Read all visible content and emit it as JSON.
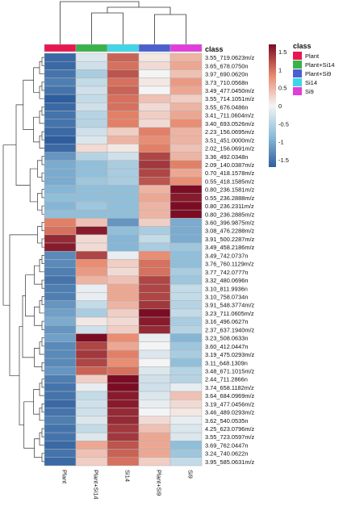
{
  "chart_data": {
    "type": "heatmap",
    "title": "",
    "columns": [
      "Plant",
      "Plant+Si14",
      "Si14",
      "Plant+Si9",
      "Si9"
    ],
    "annotation": {
      "title": "class",
      "classes": [
        {
          "name": "Plant",
          "color": "#e8174f"
        },
        {
          "name": "Plant+Si14",
          "color": "#3ab24a"
        },
        {
          "name": "Plant+Si9",
          "color": "#4a5fd0"
        },
        {
          "name": "Si14",
          "color": "#3fd6e8"
        },
        {
          "name": "Si9",
          "color": "#e23ddb"
        }
      ]
    },
    "colorbar": {
      "range": [
        -1.7,
        1.7
      ],
      "ticks": [
        1.5,
        1,
        0.5,
        0,
        -0.5,
        -1,
        -1.5
      ],
      "colors": [
        "#2f5e9e",
        "#8bbcd8",
        "#f4f4f4",
        "#e8876b",
        "#7a0d24"
      ]
    },
    "rows": [
      {
        "label": "3.55_719.0623m/z",
        "values": [
          -1.6,
          -0.2,
          1.1,
          0.1,
          0.5
        ]
      },
      {
        "label": "3.65_678.0750n",
        "values": [
          -1.6,
          -0.3,
          1.0,
          0.2,
          0.6
        ]
      },
      {
        "label": "3.97_690.0620n",
        "values": [
          -1.5,
          -0.6,
          1.2,
          0.0,
          0.4
        ]
      },
      {
        "label": "3.73_710.0568n",
        "values": [
          -1.4,
          -0.4,
          1.0,
          0.1,
          0.7
        ]
      },
      {
        "label": "3.49_477.0450m/z",
        "values": [
          -1.5,
          -0.3,
          1.1,
          0.0,
          0.6
        ]
      },
      {
        "label": "3.55_714.1051m/z",
        "values": [
          -1.7,
          -0.4,
          1.0,
          0.4,
          0.3
        ]
      },
      {
        "label": "3.55_676.0486n",
        "values": [
          -1.6,
          -0.3,
          1.0,
          0.2,
          0.5
        ]
      },
      {
        "label": "3.41_711.0604m/z",
        "values": [
          -1.5,
          -0.5,
          0.9,
          0.3,
          0.6
        ]
      },
      {
        "label": "3.40_693.0526m/z",
        "values": [
          -1.5,
          -0.5,
          0.9,
          0.2,
          0.8
        ]
      },
      {
        "label": "2.23_156.0695m/z",
        "values": [
          -1.6,
          -0.3,
          0.3,
          0.9,
          0.5
        ]
      },
      {
        "label": "3.51_451.0000m/z",
        "values": [
          -1.7,
          -0.2,
          0.5,
          0.8,
          0.5
        ]
      },
      {
        "label": "2.02_156.0691m/z",
        "values": [
          -1.6,
          0.2,
          0.1,
          0.9,
          0.4
        ]
      },
      {
        "label": "3.36_492.0348n",
        "values": [
          -1.2,
          -0.5,
          -0.3,
          1.3,
          0.5
        ]
      },
      {
        "label": "2.09_140.0387m/z",
        "values": [
          -1.0,
          -0.8,
          -0.6,
          1.4,
          0.9
        ]
      },
      {
        "label": "0.70_418.1578m/z",
        "values": [
          -1.0,
          -0.8,
          -0.6,
          1.3,
          0.6
        ]
      },
      {
        "label": "0.55_418.1585m/z",
        "values": [
          -1.0,
          -0.7,
          -0.6,
          1.2,
          0.8
        ]
      },
      {
        "label": "0.80_236.1581m/z",
        "values": [
          -0.9,
          -0.8,
          -0.8,
          0.5,
          1.7
        ]
      },
      {
        "label": "0.55_236.2888m/z",
        "values": [
          -0.8,
          -0.8,
          -0.8,
          0.6,
          1.6
        ]
      },
      {
        "label": "0.80_236.2311m/z",
        "values": [
          -0.9,
          -0.7,
          -0.8,
          0.5,
          1.7
        ]
      },
      {
        "label": "0.80_236.2885m/z",
        "values": [
          -0.8,
          -0.8,
          -0.8,
          0.5,
          1.7
        ]
      },
      {
        "label": "3.60_396.9875m/z",
        "values": [
          0.9,
          0.4,
          -1.2,
          0.3,
          -1.0
        ]
      },
      {
        "label": "3.08_476.2288m/z",
        "values": [
          1.0,
          1.6,
          -0.8,
          -0.6,
          -1.0
        ]
      },
      {
        "label": "3.91_500.2287m/z",
        "values": [
          1.5,
          0.2,
          -0.9,
          -0.4,
          -1.0
        ]
      },
      {
        "label": "3.49_458.2186m/z",
        "values": [
          1.6,
          0.2,
          -0.9,
          -0.6,
          -0.7
        ]
      },
      {
        "label": "3.49_742.0737n",
        "values": [
          -1.3,
          1.3,
          -0.1,
          0.8,
          -0.8
        ]
      },
      {
        "label": "3.76_760.1129m/z",
        "values": [
          -1.3,
          0.8,
          0.3,
          1.0,
          -0.8
        ]
      },
      {
        "label": "3.77_742.0777n",
        "values": [
          -1.4,
          0.7,
          0.2,
          1.0,
          -0.6
        ]
      },
      {
        "label": "3.32_480.0696n",
        "values": [
          -1.5,
          0.5,
          0.4,
          1.3,
          -0.7
        ]
      },
      {
        "label": "3.10_811.9936n",
        "values": [
          -1.4,
          -0.1,
          0.6,
          1.3,
          -0.4
        ]
      },
      {
        "label": "3.10_758.0734n",
        "values": [
          -1.4,
          -0.1,
          0.6,
          1.3,
          -0.4
        ]
      },
      {
        "label": "3.91_548.3774m/z",
        "values": [
          -1.2,
          -0.4,
          0.5,
          1.4,
          -0.5
        ]
      },
      {
        "label": "3.23_711.0605m/z",
        "values": [
          -1.1,
          -0.6,
          0.3,
          1.7,
          -0.4
        ]
      },
      {
        "label": "3.16_496.0627n",
        "values": [
          -1.0,
          0.1,
          0.2,
          1.6,
          -0.6
        ]
      },
      {
        "label": "2.37_637.1940m/z",
        "values": [
          -1.2,
          -0.3,
          0.3,
          1.5,
          -0.5
        ]
      },
      {
        "label": "3.23_508.0633n",
        "values": [
          -1.1,
          1.7,
          0.8,
          -0.1,
          -0.9
        ]
      },
      {
        "label": "3.60_412.0447n",
        "values": [
          -1.3,
          1.3,
          0.6,
          0.0,
          -0.7
        ]
      },
      {
        "label": "3.19_475.0293m/z",
        "values": [
          -1.3,
          1.4,
          0.9,
          -0.2,
          -0.6
        ]
      },
      {
        "label": "3.11_648.1309n",
        "values": [
          -1.3,
          1.3,
          0.8,
          0.0,
          -0.8
        ]
      },
      {
        "label": "3.48_671.1015m/z",
        "values": [
          -1.2,
          1.1,
          1.0,
          -0.2,
          -0.5
        ]
      },
      {
        "label": "2.44_711.2866n",
        "values": [
          -1.4,
          0.3,
          1.7,
          -0.3,
          -0.5
        ]
      },
      {
        "label": "3.74_658.1182m/z",
        "values": [
          -1.5,
          -0.1,
          1.7,
          -0.3,
          -0.1
        ]
      },
      {
        "label": "3.64_684.0969m/z",
        "values": [
          -1.5,
          -0.4,
          1.6,
          -0.2,
          0.4
        ]
      },
      {
        "label": "3.19_477.0456m/z",
        "values": [
          -1.6,
          -0.3,
          1.6,
          -0.1,
          0.2
        ]
      },
      {
        "label": "3.46_489.0293m/z",
        "values": [
          -1.5,
          -0.3,
          1.5,
          0.0,
          0.1
        ]
      },
      {
        "label": "3.62_540.0535n",
        "values": [
          -1.4,
          -0.2,
          1.5,
          0.2,
          -0.1
        ]
      },
      {
        "label": "4.25_623.0796m/z",
        "values": [
          -1.5,
          -0.4,
          1.4,
          0.4,
          -0.2
        ]
      },
      {
        "label": "3.55_723.0597m/z",
        "values": [
          -1.5,
          -0.2,
          1.4,
          0.6,
          -0.2
        ]
      },
      {
        "label": "3.69_762.0447n",
        "values": [
          -1.6,
          0.6,
          1.2,
          0.6,
          -0.8
        ]
      },
      {
        "label": "3.24_740.0622n",
        "values": [
          -1.5,
          0.4,
          1.1,
          0.6,
          -0.7
        ]
      },
      {
        "label": "3.95_585.0631m/z",
        "values": [
          -1.6,
          0.3,
          1.0,
          0.3,
          -0.4
        ]
      }
    ]
  }
}
